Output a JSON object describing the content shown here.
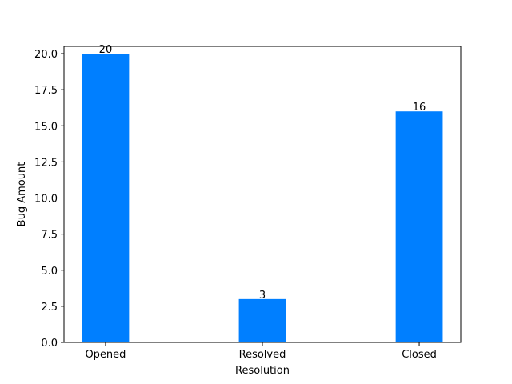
{
  "chart_data": {
    "type": "bar",
    "categories": [
      "Opened",
      "Resolved",
      "Closed"
    ],
    "values": [
      20,
      3,
      16
    ],
    "value_labels": [
      "20",
      "3",
      "16"
    ],
    "title": "",
    "xlabel": "Resolution",
    "ylabel": "Bug Amount",
    "ylim": [
      0,
      20.5
    ],
    "yticks": [
      0,
      2.5,
      5,
      7.5,
      10,
      12.5,
      15,
      17.5,
      20
    ],
    "ytick_labels": [
      "0.0",
      "2.5",
      "5.0",
      "7.5",
      "10.0",
      "12.5",
      "15.0",
      "17.5",
      "20.0"
    ],
    "grid": false,
    "bar_color": "#007fff"
  }
}
